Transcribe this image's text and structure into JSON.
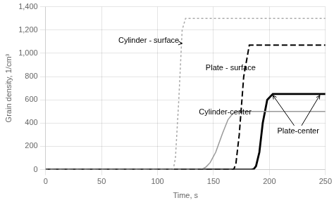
{
  "chart_data": {
    "type": "line",
    "xlabel": "Time, s",
    "ylabel": "Grain density, 1/cm³",
    "xlim": [
      0,
      250
    ],
    "ylim": [
      0,
      1400
    ],
    "xticks": [
      0,
      50,
      100,
      150,
      200,
      250
    ],
    "yticks": [
      0,
      200,
      400,
      600,
      800,
      1000,
      1200,
      1400
    ],
    "grid": true,
    "series": [
      {
        "x": [
          0,
          114,
          116,
          119,
          122,
          125,
          250
        ],
        "values": [
          0,
          0,
          100,
          600,
          1200,
          1300,
          1300
        ],
        "color": "#aaaaaa",
        "line_style": "dotted"
      },
      {
        "x": [
          0,
          168,
          170,
          173,
          177,
          182,
          250
        ],
        "values": [
          0,
          0,
          50,
          300,
          800,
          1070,
          1070
        ],
        "color": "#000000",
        "line_style": "dashed"
      },
      {
        "x": [
          0,
          138,
          140,
          143,
          147,
          152,
          158,
          163,
          168,
          173,
          250
        ],
        "values": [
          0,
          0,
          5,
          20,
          60,
          150,
          310,
          430,
          490,
          500,
          500
        ],
        "color": "#999999",
        "line_style": "solid"
      },
      {
        "x": [
          0,
          184,
          186,
          188,
          191,
          194,
          198,
          203,
          250
        ],
        "values": [
          0,
          0,
          5,
          30,
          150,
          400,
          600,
          650,
          650
        ],
        "color": "#000000",
        "line_style": "solid"
      }
    ],
    "annotations": [
      {
        "text": "Cylinder - surface",
        "xytext": [
          65,
          1110
        ],
        "arrows": [
          [
            122,
            1085
          ]
        ]
      },
      {
        "text": "Plate - surface",
        "xytext": [
          143,
          870
        ],
        "arrows": [
          [
            179,
            855
          ]
        ]
      },
      {
        "text": "Cylinder-center",
        "xytext": [
          137,
          490
        ],
        "arrows": [
          [
            168,
            490
          ]
        ]
      },
      {
        "text": "Plate-center",
        "xytext": [
          207,
          330
        ],
        "arrows": [
          [
            245,
            640
          ],
          [
            203,
            640
          ]
        ]
      }
    ]
  }
}
